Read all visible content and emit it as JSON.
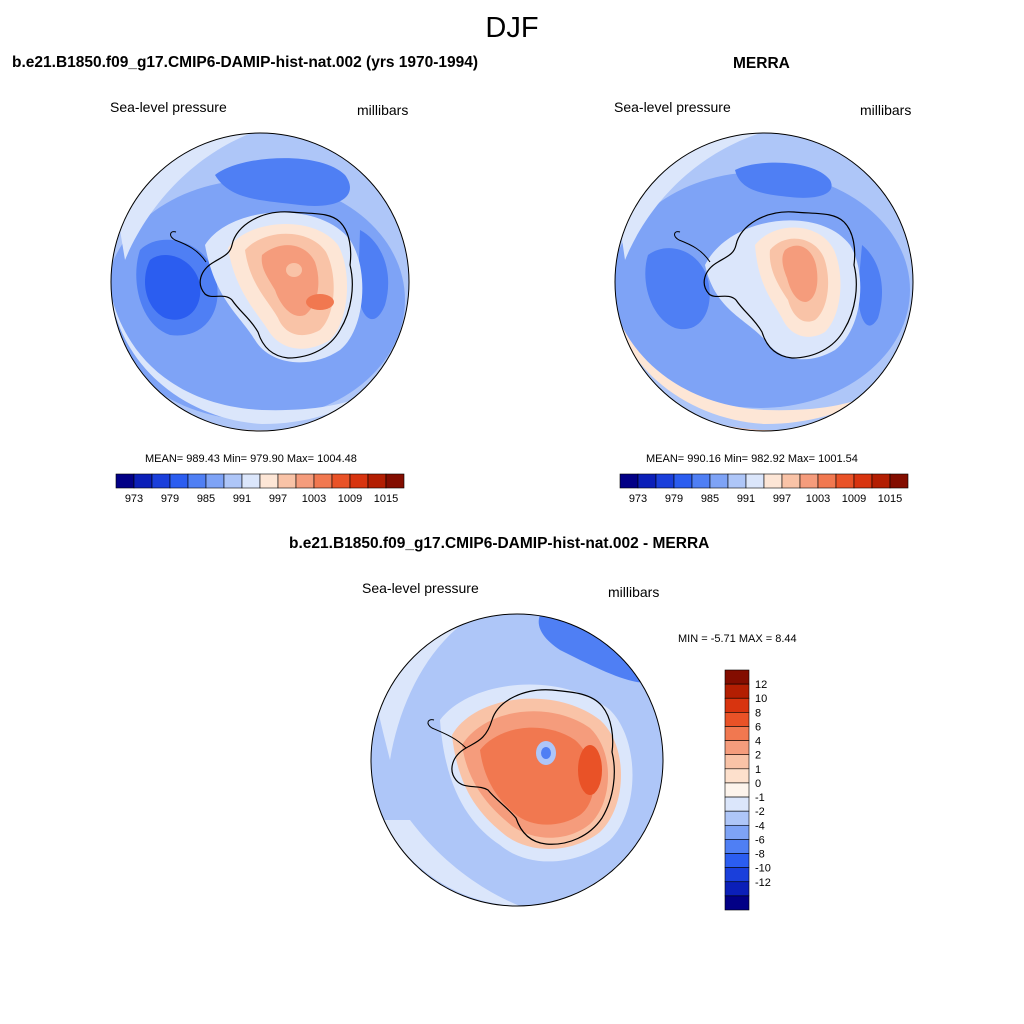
{
  "figure": {
    "title": "DJF"
  },
  "colors": {
    "pressure_palette": [
      "#020086",
      "#0b1fb8",
      "#1a3fdb",
      "#2b5df0",
      "#4f7ff4",
      "#7ea3f6",
      "#aec6f8",
      "#dbe6fb",
      "#fde6d6",
      "#f9c3a7",
      "#f59c7c",
      "#f17850",
      "#e95227",
      "#d8340f",
      "#b31e02",
      "#830d00"
    ],
    "diff_palette": [
      "#020086",
      "#0b1fb8",
      "#1a3fdb",
      "#2b5df0",
      "#4f7ff4",
      "#7ea3f6",
      "#aec6f8",
      "#dbe6fb",
      "#fdf4ec",
      "#fde0cc",
      "#f9c3a7",
      "#f59c7c",
      "#f17850",
      "#e95227",
      "#d8340f",
      "#b31e02",
      "#830d00"
    ],
    "land_outline": "#000000"
  },
  "chart_data": [
    {
      "type": "heatmap",
      "title": "b.e21.B1850.f09_g17.CMIP6-DAMIP-hist-nat.002 (yrs 1970-1994)",
      "left_label": "Sea-level pressure",
      "right_label": "millibars",
      "stats": "MEAN= 989.43  Min= 979.90  Max= 1004.48",
      "mean": 989.43,
      "min": 979.9,
      "max": 1004.48,
      "colorbar_ticks": [
        "973",
        "979",
        "985",
        "991",
        "997",
        "1003",
        "1009",
        "1015"
      ]
    },
    {
      "type": "heatmap",
      "title": "MERRA",
      "left_label": "Sea-level pressure",
      "right_label": "millibars",
      "stats": "MEAN= 990.16  Min= 982.92  Max= 1001.54",
      "mean": 990.16,
      "min": 982.92,
      "max": 1001.54,
      "colorbar_ticks": [
        "973",
        "979",
        "985",
        "991",
        "997",
        "1003",
        "1009",
        "1015"
      ]
    },
    {
      "type": "heatmap",
      "title": "b.e21.B1850.f09_g17.CMIP6-DAMIP-hist-nat.002 - MERRA",
      "left_label": "Sea-level pressure",
      "right_label": "millibars",
      "stats": "MIN =  -5.71 MAX =   8.44",
      "min": -5.71,
      "max": 8.44,
      "colorbar_ticks": [
        "12",
        "10",
        "8",
        "6",
        "4",
        "2",
        "1",
        "0",
        "-1",
        "-2",
        "-4",
        "-6",
        "-8",
        "-10",
        "-12"
      ]
    }
  ]
}
